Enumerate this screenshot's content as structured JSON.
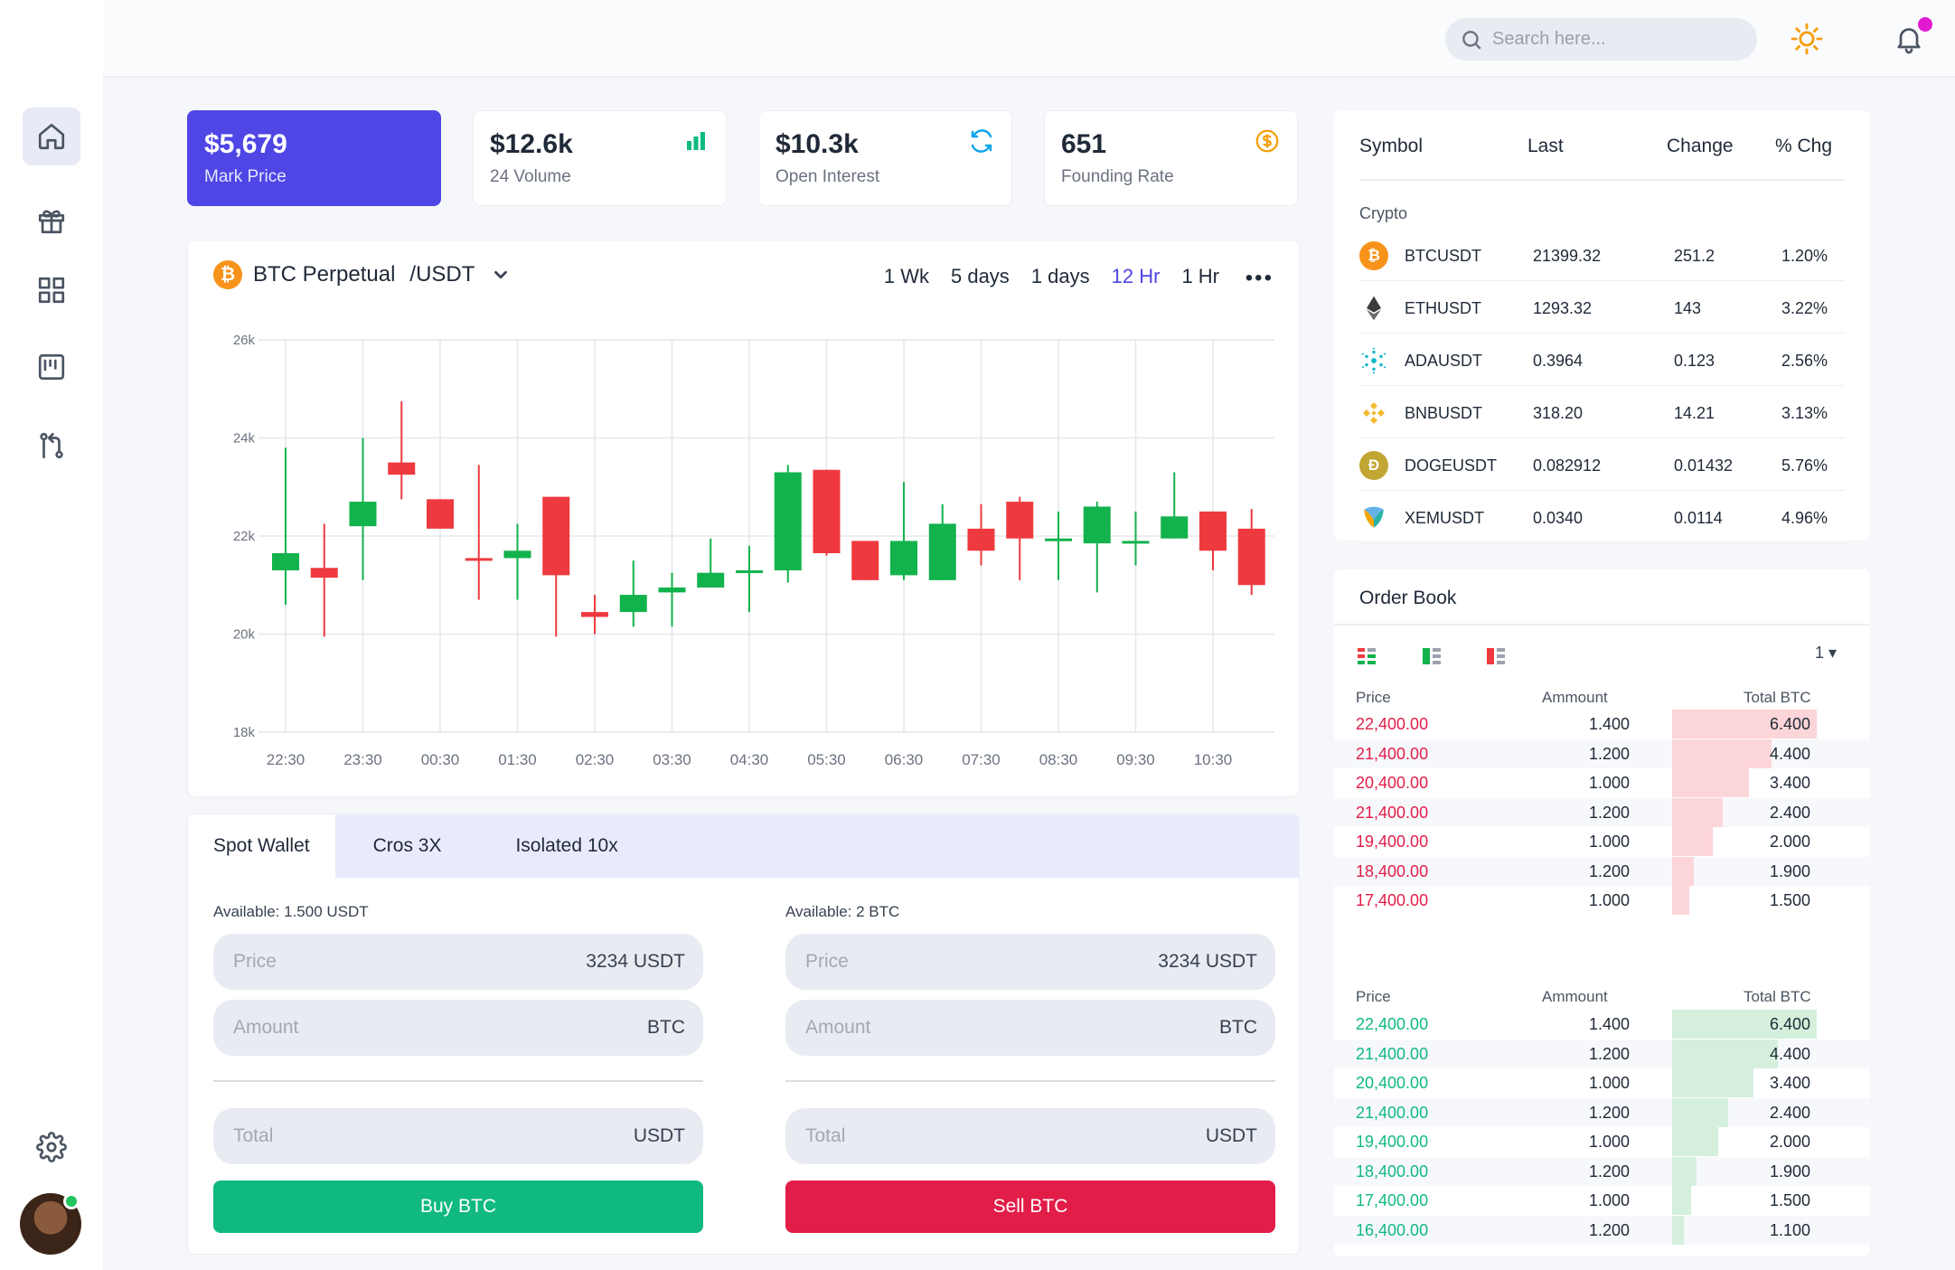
{
  "topbar": {
    "search_placeholder": "Search here..."
  },
  "sidebar": {
    "items": [
      "home-icon",
      "gift-icon",
      "grid-icon",
      "board-icon",
      "git-icon"
    ],
    "settings_icon": "gear-icon"
  },
  "stats": [
    {
      "value": "$5,679",
      "label": "Mark Price"
    },
    {
      "value": "$12.6k",
      "label": "24 Volume"
    },
    {
      "value": "$10.3k",
      "label": "Open Interest"
    },
    {
      "value": "651",
      "label": "Founding Rate"
    }
  ],
  "chart": {
    "pair": "BTC Perpetual",
    "quote": "/USDT",
    "ranges": [
      "1 Wk",
      "5 days",
      "1 days",
      "12 Hr",
      "1 Hr"
    ],
    "active_range": "12 Hr",
    "more": "•••"
  },
  "chart_data": {
    "type": "candlestick",
    "y_ticks": [
      "26k",
      "24k",
      "22k",
      "20k",
      "18k"
    ],
    "ylim": [
      18000,
      26000
    ],
    "x_ticks": [
      "22:30",
      "23:30",
      "00:30",
      "01:30",
      "02:30",
      "03:30",
      "04:30",
      "05:30",
      "06:30",
      "07:30",
      "08:30",
      "09:30",
      "10:30"
    ],
    "candles": [
      {
        "o": 21300,
        "c": 21650,
        "h": 23800,
        "l": 20600
      },
      {
        "o": 21350,
        "c": 21150,
        "h": 22250,
        "l": 19950
      },
      {
        "o": 22200,
        "c": 22700,
        "h": 24000,
        "l": 21100
      },
      {
        "o": 23500,
        "c": 23250,
        "h": 24750,
        "l": 22750
      },
      {
        "o": 22750,
        "c": 22150,
        "h": 22750,
        "l": 22150
      },
      {
        "o": 21550,
        "c": 21500,
        "h": 23450,
        "l": 20700
      },
      {
        "o": 21550,
        "c": 21700,
        "h": 22250,
        "l": 20700
      },
      {
        "o": 22800,
        "c": 21200,
        "h": 22800,
        "l": 19950
      },
      {
        "o": 20450,
        "c": 20350,
        "h": 20800,
        "l": 20000
      },
      {
        "o": 20450,
        "c": 20800,
        "h": 21500,
        "l": 20150
      },
      {
        "o": 20850,
        "c": 20950,
        "h": 21250,
        "l": 20150
      },
      {
        "o": 20950,
        "c": 21250,
        "h": 21950,
        "l": 20950
      },
      {
        "o": 21300,
        "c": 21300,
        "h": 21800,
        "l": 20450
      },
      {
        "o": 21300,
        "c": 23300,
        "h": 23450,
        "l": 21050
      },
      {
        "o": 23350,
        "c": 21650,
        "h": 23350,
        "l": 21600
      },
      {
        "o": 21900,
        "c": 21100,
        "h": 21900,
        "l": 21100
      },
      {
        "o": 21200,
        "c": 21900,
        "h": 23100,
        "l": 21100
      },
      {
        "o": 21100,
        "c": 22250,
        "h": 22650,
        "l": 21100
      },
      {
        "o": 22150,
        "c": 21700,
        "h": 22650,
        "l": 21400
      },
      {
        "o": 22700,
        "c": 21950,
        "h": 22800,
        "l": 21100
      },
      {
        "o": 21950,
        "c": 21950,
        "h": 22500,
        "l": 21100
      },
      {
        "o": 21850,
        "c": 22600,
        "h": 22700,
        "l": 20850
      },
      {
        "o": 21850,
        "c": 21900,
        "h": 22500,
        "l": 21400
      },
      {
        "o": 21950,
        "c": 22400,
        "h": 23300,
        "l": 21950
      },
      {
        "o": 22500,
        "c": 21700,
        "h": 22500,
        "l": 21300
      },
      {
        "o": 22150,
        "c": 21000,
        "h": 22550,
        "l": 20800
      }
    ],
    "colors": {
      "up": "#12b24c",
      "down": "#ee3a3f"
    }
  },
  "trade": {
    "tabs": [
      "Spot Wallet",
      "Cros 3X",
      "Isolated 10x"
    ],
    "buy": {
      "available": "Available: 1.500 USDT",
      "price_ph": "Price",
      "price_val": "3234 USDT",
      "amount_ph": "Amount",
      "amount_unit": "BTC",
      "total_ph": "Total",
      "total_unit": "USDT",
      "button": "Buy BTC"
    },
    "sell": {
      "available": "Available: 2 BTC",
      "price_ph": "Price",
      "price_val": "3234 USDT",
      "amount_ph": "Amount",
      "amount_unit": "BTC",
      "total_ph": "Total",
      "total_unit": "USDT",
      "button": "Sell BTC"
    }
  },
  "market": {
    "headers": [
      "Symbol",
      "Last",
      "Change",
      "% Chg"
    ],
    "category": "Crypto",
    "rows": [
      {
        "icon": "bitcoin-icon",
        "symbol": "BTCUSDT",
        "last": "21399.32",
        "change": "251.2",
        "pct": "1.20%"
      },
      {
        "icon": "ethereum-icon",
        "symbol": "ETHUSDT",
        "last": "1293.32",
        "change": "143",
        "pct": "3.22%"
      },
      {
        "icon": "cardano-icon",
        "symbol": "ADAUSDT",
        "last": "0.3964",
        "change": "0.123",
        "pct": "2.56%"
      },
      {
        "icon": "binance-icon",
        "symbol": "BNBUSDT",
        "last": "318.20",
        "change": "14.21",
        "pct": "3.13%"
      },
      {
        "icon": "dogecoin-icon",
        "symbol": "DOGEUSDT",
        "last": "0.082912",
        "change": "0.01432",
        "pct": "5.76%"
      },
      {
        "icon": "nem-icon",
        "symbol": "XEMUSDT",
        "last": "0.0340",
        "change": "0.0114",
        "pct": "4.96%"
      }
    ]
  },
  "orderbook": {
    "title": "Order Book",
    "selector": "1",
    "headers": [
      "Price",
      "Ammount",
      "Total BTC"
    ],
    "asks": [
      {
        "price": "22,400.00",
        "amount": "1.400",
        "total": "6.400",
        "depth": 1.0
      },
      {
        "price": "21,400.00",
        "amount": "1.200",
        "total": "4.400",
        "depth": 0.69
      },
      {
        "price": "20,400.00",
        "amount": "1.000",
        "total": "3.400",
        "depth": 0.53
      },
      {
        "price": "21,400.00",
        "amount": "1.200",
        "total": "2.400",
        "depth": 0.35
      },
      {
        "price": "19,400.00",
        "amount": "1.000",
        "total": "2.000",
        "depth": 0.28
      },
      {
        "price": "18,400.00",
        "amount": "1.200",
        "total": "1.900",
        "depth": 0.15
      },
      {
        "price": "17,400.00",
        "amount": "1.000",
        "total": "1.500",
        "depth": 0.12
      }
    ],
    "bids": [
      {
        "price": "22,400.00",
        "amount": "1.400",
        "total": "6.400",
        "depth": 1.0
      },
      {
        "price": "21,400.00",
        "amount": "1.200",
        "total": "4.400",
        "depth": 0.73
      },
      {
        "price": "20,400.00",
        "amount": "1.000",
        "total": "3.400",
        "depth": 0.56
      },
      {
        "price": "21,400.00",
        "amount": "1.200",
        "total": "2.400",
        "depth": 0.39
      },
      {
        "price": "19,400.00",
        "amount": "1.000",
        "total": "2.000",
        "depth": 0.32
      },
      {
        "price": "18,400.00",
        "amount": "1.200",
        "total": "1.900",
        "depth": 0.17
      },
      {
        "price": "17,400.00",
        "amount": "1.000",
        "total": "1.500",
        "depth": 0.13
      },
      {
        "price": "16,400.00",
        "amount": "1.200",
        "total": "1.100",
        "depth": 0.08
      }
    ],
    "colors": {
      "ask_text": "#e11d48",
      "ask_bar": "#fcd5d8",
      "bid_text": "#10b981",
      "bid_bar": "#d4f0dc"
    }
  }
}
